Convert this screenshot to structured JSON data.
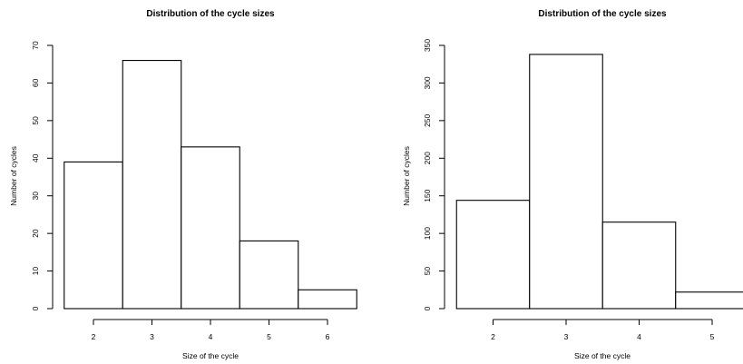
{
  "chart_data": [
    {
      "type": "bar",
      "title": "Distribution of the cycle sizes",
      "xlabel": "Size of the cycle",
      "ylabel": "Number of cycles",
      "categories": [
        2,
        3,
        4,
        5,
        6
      ],
      "values": [
        39,
        66,
        43,
        18,
        5
      ],
      "xticks": [
        "2",
        "3",
        "4",
        "5",
        "6"
      ],
      "yticks": [
        "0",
        "10",
        "20",
        "30",
        "40",
        "50",
        "60",
        "70"
      ],
      "ylim": [
        0,
        70
      ],
      "grid": false
    },
    {
      "type": "bar",
      "title": "Distribution of the cycle sizes",
      "xlabel": "Size of the cycle",
      "ylabel": "Number of cycles",
      "categories": [
        2,
        3,
        4,
        5
      ],
      "values": [
        144,
        338,
        115,
        22
      ],
      "xticks": [
        "2",
        "3",
        "4",
        "5"
      ],
      "yticks": [
        "0",
        "50",
        "100",
        "150",
        "200",
        "250",
        "300",
        "350"
      ],
      "ylim": [
        0,
        350
      ],
      "grid": false
    }
  ]
}
